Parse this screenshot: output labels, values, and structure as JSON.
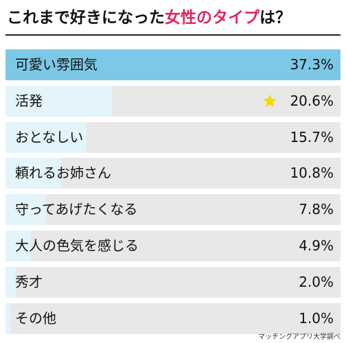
{
  "title": {
    "prefix": "これまで好きになった",
    "accent": "女性のタイプ",
    "suffix": "は？"
  },
  "chart_data": {
    "type": "bar",
    "orientation": "horizontal",
    "title": "これまで好きになった女性のタイプは？",
    "categories": [
      "可愛い雰囲気",
      "活発",
      "おとなしい",
      "頼れるお姉さん",
      "守ってあげたくなる",
      "大人の色気を感じる",
      "秀才",
      "その他"
    ],
    "values": [
      37.3,
      20.6,
      15.7,
      10.8,
      7.8,
      4.9,
      2.0,
      1.0
    ],
    "value_labels": [
      "37.3%",
      "20.6%",
      "15.7%",
      "10.8%",
      "7.8%",
      "4.9%",
      "2.0%",
      "1.0%"
    ],
    "xlim": [
      0,
      65
    ],
    "highlight_index": 0,
    "star_index": 1,
    "colors": {
      "top": "#7cc8e6",
      "fill": "#e3f4fa",
      "track": "#e8e8e8",
      "accent": "#e0265a",
      "star": "#f5d800"
    }
  },
  "source": "マッチングアプリ大学調べ"
}
